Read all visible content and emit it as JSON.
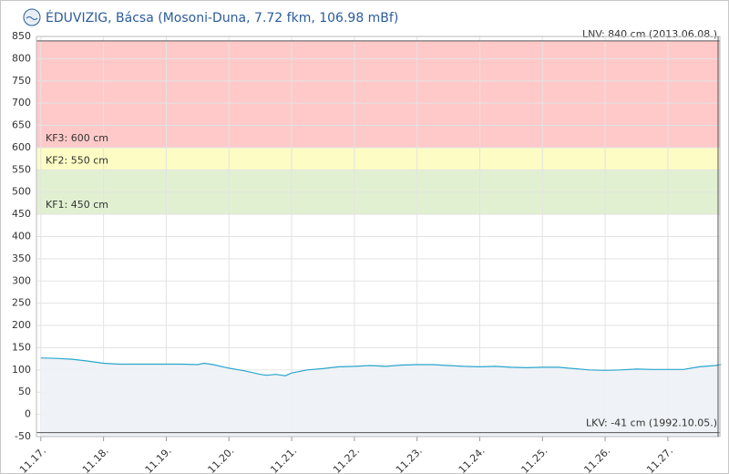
{
  "chart_data": {
    "type": "area",
    "title": "ÉDUVIZIG, Bácsa (Mosoni-Duna, 7.72 fkm, 106.98 mBf)",
    "series": [
      {
        "color": "#2aa6cc",
        "x": [
          17.0,
          17.25,
          17.5,
          17.75,
          18.0,
          18.25,
          18.5,
          18.75,
          19.0,
          19.25,
          19.5,
          19.6,
          19.75,
          20.0,
          20.25,
          20.5,
          20.6,
          20.75,
          20.9,
          21.0,
          21.25,
          21.5,
          21.75,
          22.0,
          22.25,
          22.5,
          22.75,
          23.0,
          23.25,
          23.5,
          23.75,
          24.0,
          24.25,
          24.5,
          24.75,
          25.0,
          25.25,
          25.5,
          25.75,
          26.0,
          26.25,
          26.5,
          26.75,
          27.0,
          27.25,
          27.5,
          27.75,
          27.85
        ],
        "values": [
          127,
          126,
          124,
          120,
          115,
          113,
          113,
          113,
          113,
          113,
          112,
          115,
          112,
          104,
          98,
          90,
          88,
          90,
          87,
          93,
          100,
          103,
          107,
          108,
          110,
          108,
          111,
          112,
          112,
          110,
          108,
          107,
          108,
          106,
          105,
          106,
          106,
          103,
          100,
          99,
          100,
          102,
          101,
          101,
          101,
          107,
          110,
          112
        ]
      }
    ],
    "xlim": [
      16.93,
      27.83
    ],
    "xticks": [
      {
        "value": 17,
        "label": "11.17."
      },
      {
        "value": 18,
        "label": "11.18."
      },
      {
        "value": 19,
        "label": "11.19."
      },
      {
        "value": 20,
        "label": "11.20."
      },
      {
        "value": 21,
        "label": "11.21."
      },
      {
        "value": 22,
        "label": "11.22."
      },
      {
        "value": 23,
        "label": "11.23."
      },
      {
        "value": 24,
        "label": "11.24."
      },
      {
        "value": 25,
        "label": "11.25."
      },
      {
        "value": 26,
        "label": "11.26."
      },
      {
        "value": 27,
        "label": "11.27."
      }
    ],
    "ylim": [
      -50,
      850
    ],
    "yticks": [
      -50,
      0,
      50,
      100,
      150,
      200,
      250,
      300,
      350,
      400,
      450,
      500,
      550,
      600,
      650,
      700,
      750,
      800,
      850
    ],
    "grid": true,
    "bands": [
      {
        "label": "KF3: 600 cm",
        "from": 600,
        "to": 840,
        "color": "#ffc9c9"
      },
      {
        "label": "KF2: 550 cm",
        "from": 550,
        "to": 600,
        "color": "#fdfcc4"
      },
      {
        "label": "KF1: 450 cm",
        "from": 450,
        "to": 550,
        "color": "#e2f0d2"
      }
    ],
    "lines": [
      {
        "label": "LNV: 840 cm (2013.06.08.)",
        "value": 840
      },
      {
        "label": "LKV: -41 cm (1992.10.05.)",
        "value": -41
      }
    ]
  }
}
